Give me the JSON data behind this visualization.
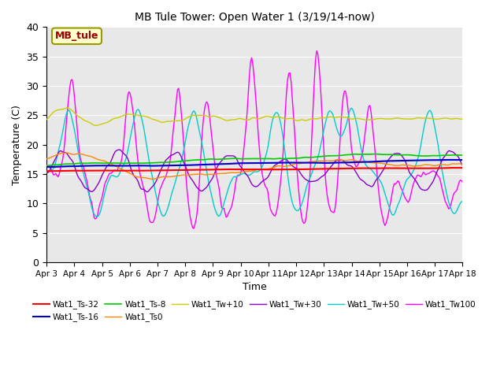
{
  "title": "MB Tule Tower: Open Water 1 (3/19/14-now)",
  "xlabel": "Time",
  "ylabel": "Temperature (C)",
  "xlim": [
    0,
    15
  ],
  "ylim": [
    0,
    40
  ],
  "yticks": [
    0,
    5,
    10,
    15,
    20,
    25,
    30,
    35,
    40
  ],
  "xtick_labels": [
    "Apr 3",
    "Apr 4",
    "Apr 5",
    "Apr 6",
    "Apr 7",
    "Apr 8",
    "Apr 9",
    "Apr 10",
    "Apr 11",
    "Apr 12",
    "Apr 13",
    "Apr 14",
    "Apr 15",
    "Apr 16",
    "Apr 17",
    "Apr 18"
  ],
  "bg_color": "#e8e8e8",
  "series_colors": {
    "Wat1_Ts-32": "#ff0000",
    "Wat1_Ts-16": "#0000cc",
    "Wat1_Ts-8": "#00cc00",
    "Wat1_Ts0": "#ff8800",
    "Wat1_Tw+10": "#cccc00",
    "Wat1_Tw+30": "#8800cc",
    "Wat1_Tw+50": "#00cccc",
    "Wat1_Tw100": "#ff00ff"
  },
  "legend_box_color": "#ffffcc",
  "legend_box_edge": "#999900",
  "legend_text": "MB_tule",
  "legend_text_color": "#990000",
  "figsize": [
    6.4,
    4.8
  ],
  "dpi": 100
}
